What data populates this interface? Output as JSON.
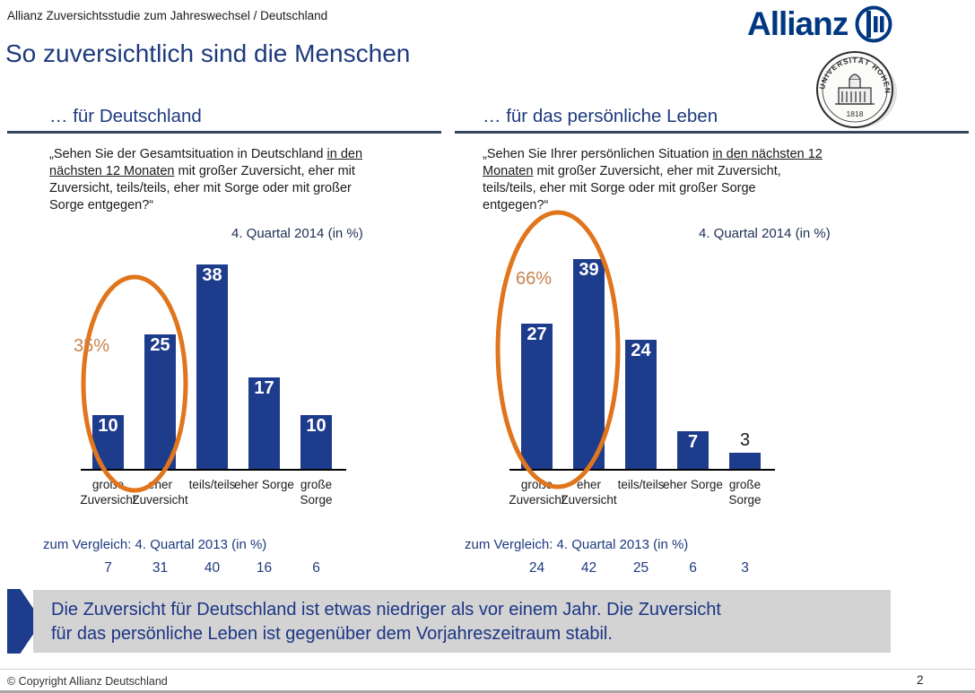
{
  "header": {
    "topline": "Allianz Zuversichtsstudie zum Jahreswechsel / Deutschland",
    "title": "So zuversichtlich sind die Menschen",
    "logo_word": "Allianz",
    "logo_color": "#003781",
    "seal": {
      "institution": "UNIVERSITÄT HOHENHEIM",
      "year": "1818"
    }
  },
  "panels": [
    {
      "heading": "… für Deutschland",
      "question_prefix": "„Sehen Sie der Gesamtsituation in Deutschland ",
      "question_underlined": "in den nächsten 12 Monaten",
      "question_suffix": " mit großer Zuversicht, eher mit Zuversicht, teils/teils, eher mit Sorge oder mit großer Sorge entgegen?“"
    },
    {
      "heading": "… für das persönliche Leben",
      "question_prefix": "„Sehen Sie Ihrer persönlichen Situation ",
      "question_underlined": "in den nächsten 12 Monaten",
      "question_suffix": " mit großer Zuversicht, eher mit Zuversicht, teils/teils, eher mit Sorge oder mit großer Sorge entgegen?“"
    }
  ],
  "chart_data": [
    {
      "type": "bar",
      "title": "4. Quartal 2014 (in %)",
      "categories": [
        "große Zuversicht",
        "eher Zuversicht",
        "teils/teils",
        "eher Sorge",
        "große Sorge"
      ],
      "category_labels": [
        [
          "große",
          "Zuversicht"
        ],
        [
          "eher",
          "Zuversicht"
        ],
        [
          "teils/teils"
        ],
        [
          "eher Sorge"
        ],
        [
          "große",
          "Sorge"
        ]
      ],
      "values": [
        10,
        25,
        38,
        17,
        10
      ],
      "ylim": [
        0,
        40
      ],
      "grid": false,
      "bar_color": "#1e3c8c",
      "highlight": {
        "label": "35%",
        "note": "orange ellipse around first two bars (große + eher Zuversicht)"
      },
      "comparison_2013": {
        "label": "zum Vergleich: 4. Quartal 2013 (in %)",
        "values": [
          7,
          31,
          40,
          16,
          6
        ]
      }
    },
    {
      "type": "bar",
      "title": "4. Quartal 2014 (in %)",
      "categories": [
        "große Zuversicht",
        "eher Zuversicht",
        "teils/teils",
        "eher Sorge",
        "große Sorge"
      ],
      "category_labels": [
        [
          "große",
          "Zuversicht"
        ],
        [
          "eher",
          "Zuversicht"
        ],
        [
          "teils/teils"
        ],
        [
          "eher Sorge"
        ],
        [
          "große",
          "Sorge"
        ]
      ],
      "values": [
        27,
        39,
        24,
        7,
        3
      ],
      "ylim": [
        0,
        40
      ],
      "grid": false,
      "bar_color": "#1e3c8c",
      "highlight": {
        "label": "66%",
        "note": "orange ellipse around first two bars (große + eher Zuversicht)"
      },
      "comparison_2013": {
        "label": "zum Vergleich: 4. Quartal 2013 (in %)",
        "values": [
          24,
          42,
          25,
          6,
          3
        ]
      }
    }
  ],
  "callout": {
    "lines": [
      "Die Zuversicht für Deutschland ist etwas niedriger als vor einem Jahr. Die Zuversicht",
      "für das persönliche Leben ist gegenüber dem Vorjahreszeitraum stabil."
    ]
  },
  "footer": {
    "copyright": "© Copyright Allianz Deutschland",
    "page_number": "2"
  },
  "colors": {
    "bar_blue": "#1e3c8c",
    "title_blue": "#1d3a7d",
    "accent_orange": "#e0751c",
    "muted_orange": "#c8824f",
    "callout_bg": "#d3d3d3",
    "callout_text": "#1c3585"
  }
}
